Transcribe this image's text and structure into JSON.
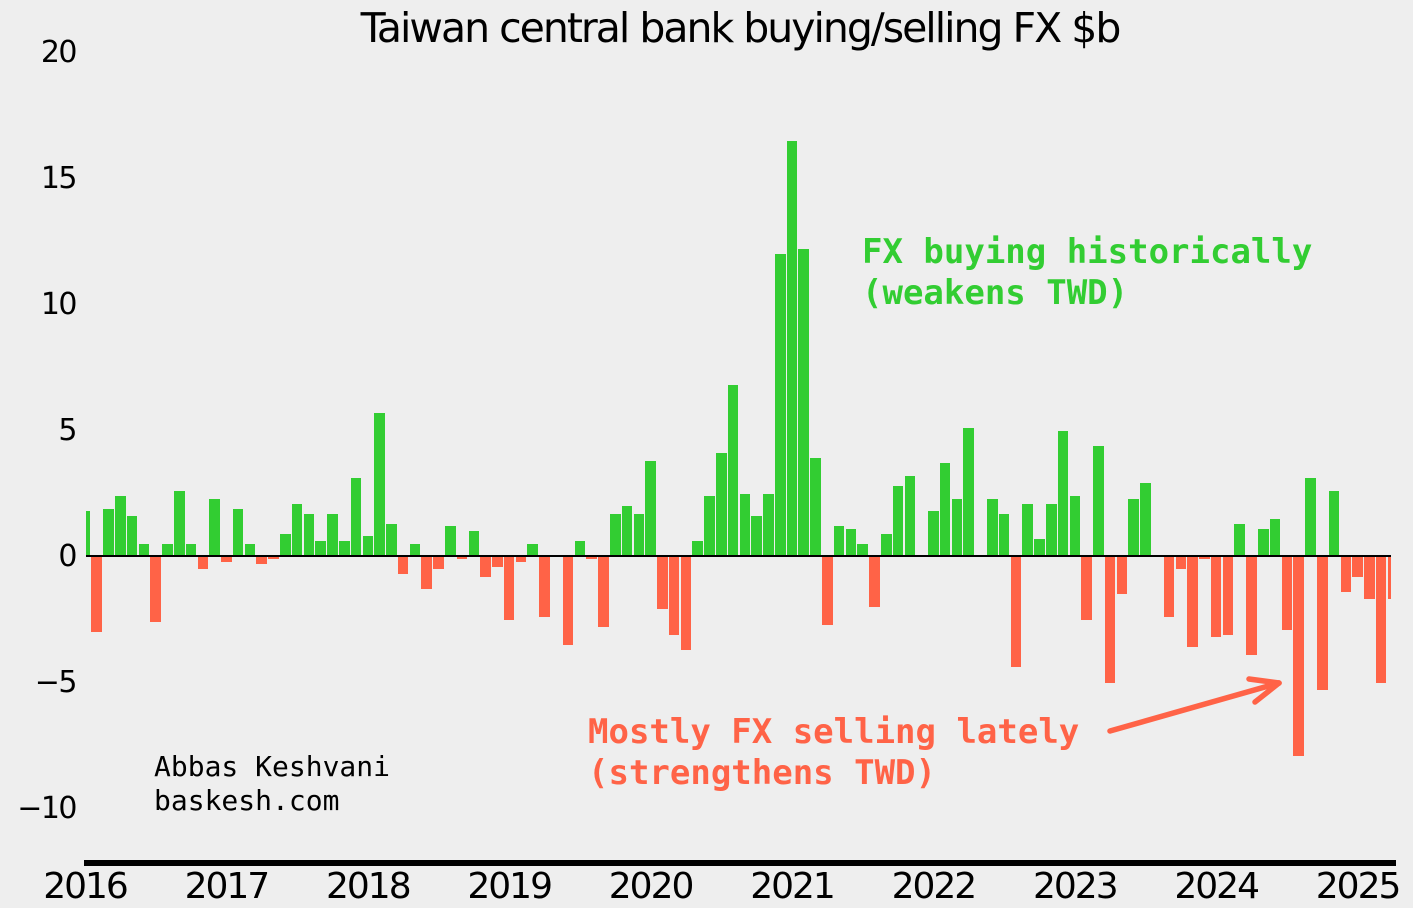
{
  "title": "Taiwan central bank buying/selling FX $b",
  "attribution": {
    "line1": "Abbas Keshvani",
    "line2": "baskesh.com"
  },
  "annotations": {
    "buying": {
      "line1": "FX buying historically",
      "line2": "(weakens TWD)"
    },
    "selling": {
      "line1": "Mostly FX selling lately",
      "line2": "(strengthens TWD)"
    }
  },
  "colors": {
    "positive": "#32cd32",
    "negative": "#ff6347",
    "background": "#eeeeee",
    "axis": "#000000"
  },
  "chart_data": {
    "type": "bar",
    "title": "Taiwan central bank buying/selling FX $b",
    "ylabel": "",
    "xlabel": "",
    "frequency": "monthly",
    "start_year": 2016,
    "start_month": 1,
    "values": [
      1.8,
      -3.0,
      1.9,
      2.4,
      1.6,
      0.5,
      -2.6,
      0.5,
      2.6,
      0.5,
      -0.5,
      2.3,
      -0.2,
      1.9,
      0.5,
      -0.3,
      -0.1,
      0.9,
      2.1,
      1.7,
      0.6,
      1.7,
      0.6,
      3.1,
      0.8,
      5.7,
      1.3,
      -0.7,
      0.5,
      -1.3,
      -0.5,
      1.2,
      -0.1,
      1.0,
      -0.8,
      -0.4,
      -2.5,
      -0.2,
      0.5,
      -2.4,
      0.0,
      -3.5,
      0.6,
      -0.1,
      -2.8,
      1.7,
      2.0,
      1.7,
      3.8,
      -2.1,
      -3.1,
      -3.7,
      0.6,
      2.4,
      4.1,
      6.8,
      2.5,
      1.6,
      2.5,
      12.0,
      16.5,
      12.2,
      3.9,
      -2.7,
      1.2,
      1.1,
      0.5,
      -2.0,
      0.9,
      2.8,
      3.2,
      0.0,
      1.8,
      3.7,
      2.3,
      5.1,
      0.0,
      2.3,
      1.7,
      -4.4,
      2.1,
      0.7,
      2.1,
      5.0,
      2.4,
      -2.5,
      4.4,
      -5.0,
      -1.5,
      2.3,
      2.9,
      0.0,
      -2.4,
      -0.5,
      -3.6,
      -0.1,
      -3.2,
      -3.1,
      1.3,
      -3.9,
      1.1,
      1.5,
      -2.9,
      -7.9,
      3.1,
      -5.3,
      2.6,
      -1.4,
      -0.8,
      -1.7,
      -5.0,
      -1.7
    ],
    "yticks": [
      20,
      15,
      10,
      5,
      0,
      -5,
      -10
    ],
    "xticks": [
      "2016",
      "2017",
      "2018",
      "2019",
      "2020",
      "2021",
      "2022",
      "2023",
      "2024",
      "2025"
    ],
    "ylim": [
      -11.5,
      20.5
    ],
    "grid": false,
    "legend": null,
    "positive_color": "#32cd32",
    "negative_color": "#ff6347"
  }
}
